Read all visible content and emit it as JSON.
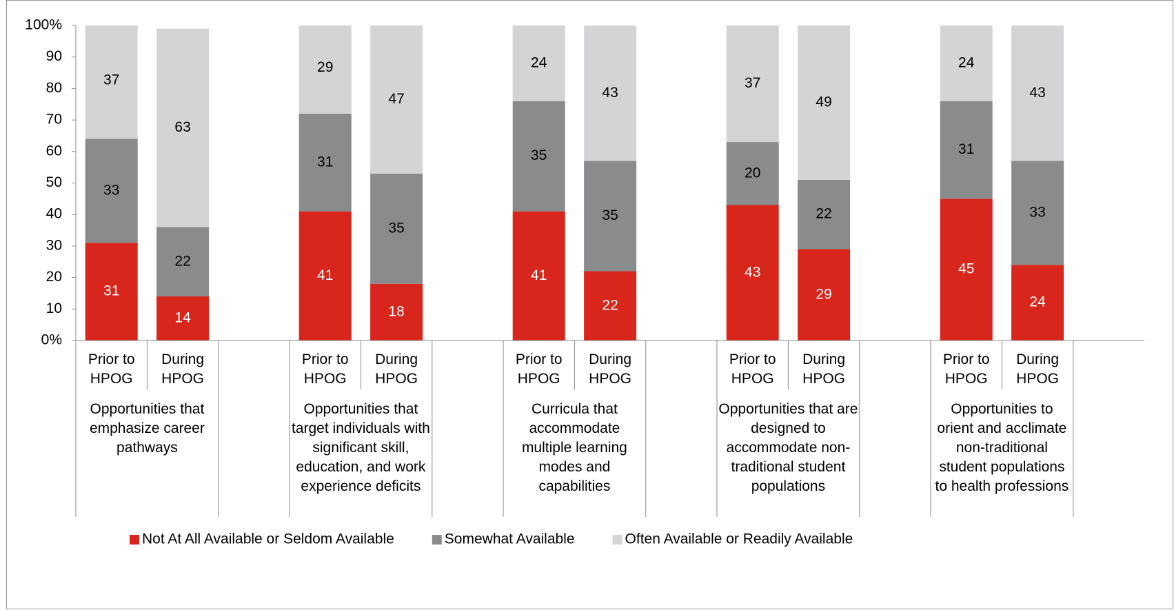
{
  "chart_data": {
    "type": "stacked_bar",
    "categories": [
      "Prior to HPOG",
      "During HPOG",
      "Prior to HPOG",
      "During HPOG",
      "Prior to HPOG",
      "During HPOG",
      "Prior to HPOG",
      "During HPOG",
      "Prior to HPOG",
      "During HPOG"
    ],
    "groups": [
      "Opportunities that emphasize career pathways",
      "Opportunities that target individuals with significant skill, education, and work experience deficits",
      "Curricula that accommodate multiple learning modes and capabilities",
      "Opportunities that are designed to accommodate non-traditional student populations",
      "Opportunities to orient and acclimate non-traditional student populations to health professions"
    ],
    "series": [
      {
        "name": "Not At All Available or Seldom Available",
        "color": "#d9261c",
        "label_color": "#ffffff",
        "values": [
          31,
          14,
          41,
          18,
          41,
          22,
          43,
          29,
          45,
          24
        ]
      },
      {
        "name": "Somewhat Available",
        "color": "#898b8c",
        "label_color": "#000000",
        "values": [
          33,
          22,
          31,
          35,
          35,
          35,
          20,
          22,
          31,
          33
        ]
      },
      {
        "name": "Often Available or Readily Available",
        "color": "#d3d4d5",
        "label_color": "#000000",
        "values": [
          37,
          63,
          29,
          47,
          24,
          43,
          37,
          49,
          24,
          43
        ]
      }
    ],
    "ylim": [
      0,
      100
    ],
    "yticks": [
      {
        "value": 0,
        "label": "0%"
      },
      10,
      20,
      30,
      40,
      50,
      60,
      70,
      80,
      90,
      {
        "value": 100,
        "label": "100%"
      }
    ],
    "grid": false,
    "legend": "bottom"
  }
}
